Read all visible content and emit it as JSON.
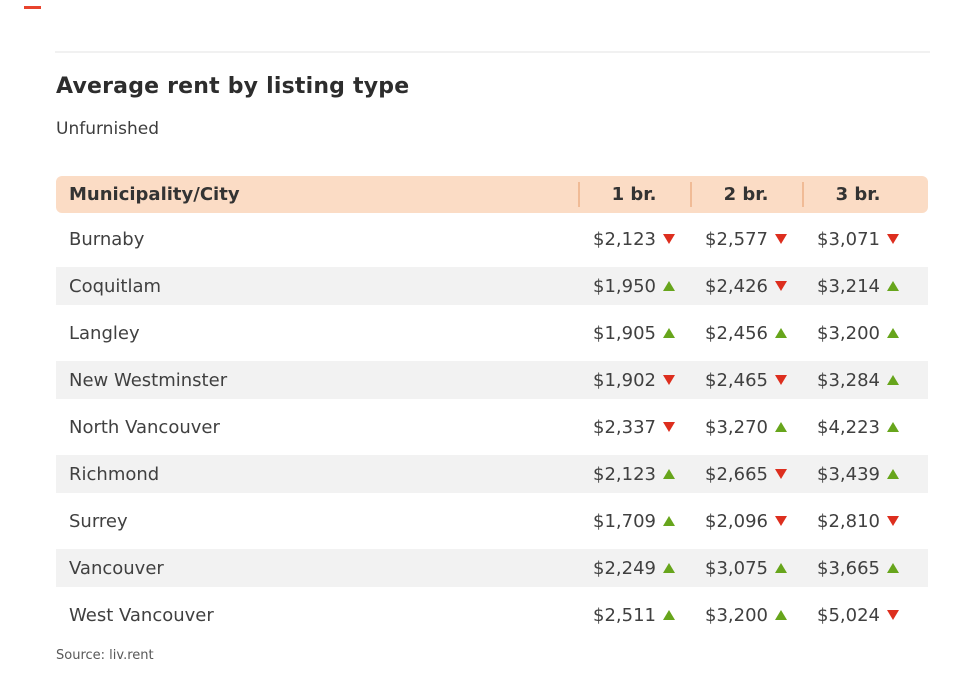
{
  "colors": {
    "brand_red": "#e8432d",
    "header_bg": "#fbdcc5",
    "header_divider": "#f0bb96",
    "row_alt_bg": "#f2f2f2",
    "trend_up": "#67a51c",
    "trend_down": "#dd2e1e"
  },
  "header": {
    "title": "Average rent by listing type",
    "subtitle": "Unfurnished"
  },
  "table": {
    "city_header": "Municipality/City",
    "columns": [
      "1 br.",
      "2 br.",
      "3 br."
    ],
    "rows": [
      {
        "city": "Burnaby",
        "values": [
          {
            "price": "$2,123",
            "trend": "down"
          },
          {
            "price": "$2,577",
            "trend": "down"
          },
          {
            "price": "$3,071",
            "trend": "down"
          }
        ]
      },
      {
        "city": "Coquitlam",
        "values": [
          {
            "price": "$1,950",
            "trend": "up"
          },
          {
            "price": "$2,426",
            "trend": "down"
          },
          {
            "price": "$3,214",
            "trend": "up"
          }
        ]
      },
      {
        "city": "Langley",
        "values": [
          {
            "price": "$1,905",
            "trend": "up"
          },
          {
            "price": "$2,456",
            "trend": "up"
          },
          {
            "price": "$3,200",
            "trend": "up"
          }
        ]
      },
      {
        "city": "New Westminster",
        "values": [
          {
            "price": "$1,902",
            "trend": "down"
          },
          {
            "price": "$2,465",
            "trend": "down"
          },
          {
            "price": "$3,284",
            "trend": "up"
          }
        ]
      },
      {
        "city": "North Vancouver",
        "values": [
          {
            "price": "$2,337",
            "trend": "down"
          },
          {
            "price": "$3,270",
            "trend": "up"
          },
          {
            "price": "$4,223",
            "trend": "up"
          }
        ]
      },
      {
        "city": "Richmond",
        "values": [
          {
            "price": "$2,123",
            "trend": "up"
          },
          {
            "price": "$2,665",
            "trend": "down"
          },
          {
            "price": "$3,439",
            "trend": "up"
          }
        ]
      },
      {
        "city": "Surrey",
        "values": [
          {
            "price": "$1,709",
            "trend": "up"
          },
          {
            "price": "$2,096",
            "trend": "down"
          },
          {
            "price": "$2,810",
            "trend": "down"
          }
        ]
      },
      {
        "city": "Vancouver",
        "values": [
          {
            "price": "$2,249",
            "trend": "up"
          },
          {
            "price": "$3,075",
            "trend": "up"
          },
          {
            "price": "$3,665",
            "trend": "up"
          }
        ]
      },
      {
        "city": "West Vancouver",
        "values": [
          {
            "price": "$2,511",
            "trend": "up"
          },
          {
            "price": "$3,200",
            "trend": "up"
          },
          {
            "price": "$5,024",
            "trend": "down"
          }
        ]
      }
    ]
  },
  "footer": {
    "source": "Source: liv.rent"
  },
  "chart_data": {
    "type": "table",
    "title": "Average rent by listing type",
    "subtitle": "Unfurnished",
    "columns": [
      "Municipality/City",
      "1 br.",
      "2 br.",
      "3 br."
    ],
    "rows": [
      {
        "city": "Burnaby",
        "br1": 2123,
        "br1_trend": "down",
        "br2": 2577,
        "br2_trend": "down",
        "br3": 3071,
        "br3_trend": "down"
      },
      {
        "city": "Coquitlam",
        "br1": 1950,
        "br1_trend": "up",
        "br2": 2426,
        "br2_trend": "down",
        "br3": 3214,
        "br3_trend": "up"
      },
      {
        "city": "Langley",
        "br1": 1905,
        "br1_trend": "up",
        "br2": 2456,
        "br2_trend": "up",
        "br3": 3200,
        "br3_trend": "up"
      },
      {
        "city": "New Westminster",
        "br1": 1902,
        "br1_trend": "down",
        "br2": 2465,
        "br2_trend": "down",
        "br3": 3284,
        "br3_trend": "up"
      },
      {
        "city": "North Vancouver",
        "br1": 2337,
        "br1_trend": "down",
        "br2": 3270,
        "br2_trend": "up",
        "br3": 4223,
        "br3_trend": "up"
      },
      {
        "city": "Richmond",
        "br1": 2123,
        "br1_trend": "up",
        "br2": 2665,
        "br2_trend": "down",
        "br3": 3439,
        "br3_trend": "up"
      },
      {
        "city": "Surrey",
        "br1": 1709,
        "br1_trend": "up",
        "br2": 2096,
        "br2_trend": "down",
        "br3": 2810,
        "br3_trend": "down"
      },
      {
        "city": "Vancouver",
        "br1": 2249,
        "br1_trend": "up",
        "br2": 3075,
        "br2_trend": "up",
        "br3": 3665,
        "br3_trend": "up"
      },
      {
        "city": "West Vancouver",
        "br1": 2511,
        "br1_trend": "up",
        "br2": 3200,
        "br2_trend": "up",
        "br3": 5024,
        "br3_trend": "down"
      }
    ],
    "source": "liv.rent"
  }
}
